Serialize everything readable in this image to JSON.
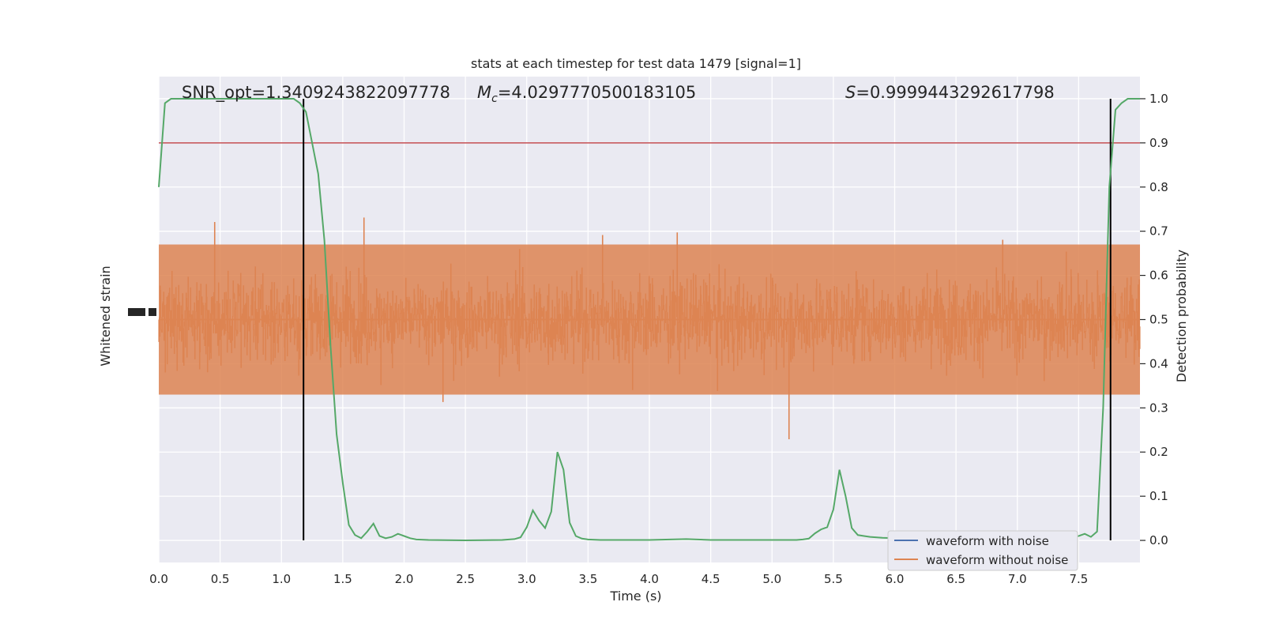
{
  "chart_data": {
    "type": "line",
    "title": "stats at each timestep for test data 1479 [signal=1]",
    "xlabel": "Time (s)",
    "ylabel_left": "Whitened strain",
    "ylabel_right": "Detection probability",
    "xlim": [
      0.0,
      8.0
    ],
    "ylim_right": [
      -0.05,
      1.05
    ],
    "x_ticks": [
      "0.0",
      "0.5",
      "1.0",
      "1.5",
      "2.0",
      "2.5",
      "3.0",
      "3.5",
      "4.0",
      "4.5",
      "5.0",
      "5.5",
      "6.0",
      "6.5",
      "7.0",
      "7.5"
    ],
    "x_tick_values": [
      0.0,
      0.5,
      1.0,
      1.5,
      2.0,
      2.5,
      3.0,
      3.5,
      4.0,
      4.5,
      5.0,
      5.5,
      6.0,
      6.5,
      7.0,
      7.5
    ],
    "y_right_ticks": [
      "0.0",
      "0.1",
      "0.2",
      "0.3",
      "0.4",
      "0.5",
      "0.6",
      "0.7",
      "0.8",
      "0.9",
      "1.0"
    ],
    "y_right_tick_values": [
      0.0,
      0.1,
      0.2,
      0.3,
      0.4,
      0.5,
      0.6,
      0.7,
      0.8,
      0.9,
      1.0
    ],
    "annotations": {
      "snr": "SNR_opt=1.3409243822097778",
      "mc_symbol": "M",
      "mc_sub": "c",
      "mc_value": "=4.0297770500183105",
      "s_symbol": "S",
      "s_value": "=0.9999443292617798"
    },
    "threshold": 0.9,
    "vertical_lines": [
      1.18,
      7.76
    ],
    "grid": true,
    "legend": {
      "placement": "lower-right",
      "entries": [
        "waveform with noise",
        "waveform without noise"
      ]
    },
    "colors": {
      "background": "#eaeaf2",
      "noise": "#dd8452",
      "clean": "#4c72b0",
      "probability": "#55a868",
      "threshold": "#c44e52",
      "vline": "#000000"
    },
    "series": [
      {
        "name": "Detection probability",
        "x": [
          0.0,
          0.05,
          0.1,
          0.15,
          0.2,
          0.3,
          0.5,
          0.7,
          0.9,
          1.1,
          1.15,
          1.2,
          1.25,
          1.3,
          1.35,
          1.4,
          1.45,
          1.5,
          1.55,
          1.6,
          1.65,
          1.7,
          1.75,
          1.8,
          1.85,
          1.9,
          1.95,
          2.0,
          2.05,
          2.1,
          2.2,
          2.5,
          2.8,
          2.9,
          2.95,
          3.0,
          3.05,
          3.1,
          3.15,
          3.2,
          3.25,
          3.3,
          3.35,
          3.4,
          3.45,
          3.5,
          3.6,
          3.8,
          4.0,
          4.3,
          4.5,
          4.8,
          5.0,
          5.2,
          5.25,
          5.3,
          5.35,
          5.4,
          5.45,
          5.5,
          5.55,
          5.6,
          5.65,
          5.7,
          5.75,
          5.8,
          5.9,
          6.0,
          6.5,
          7.0,
          7.3,
          7.5,
          7.55,
          7.6,
          7.65,
          7.7,
          7.75,
          7.8,
          7.85,
          7.9,
          7.95,
          8.0
        ],
        "values": [
          0.8,
          0.99,
          1.0,
          1.0,
          1.0,
          1.0,
          1.0,
          1.0,
          1.0,
          1.0,
          0.99,
          0.97,
          0.9,
          0.83,
          0.68,
          0.44,
          0.24,
          0.13,
          0.035,
          0.012,
          0.005,
          0.02,
          0.038,
          0.01,
          0.005,
          0.008,
          0.015,
          0.01,
          0.005,
          0.002,
          0.001,
          0.0,
          0.001,
          0.003,
          0.007,
          0.03,
          0.068,
          0.045,
          0.028,
          0.065,
          0.2,
          0.16,
          0.04,
          0.01,
          0.004,
          0.002,
          0.001,
          0.001,
          0.001,
          0.003,
          0.001,
          0.001,
          0.001,
          0.001,
          0.002,
          0.004,
          0.016,
          0.025,
          0.03,
          0.07,
          0.16,
          0.1,
          0.028,
          0.012,
          0.01,
          0.008,
          0.006,
          0.005,
          0.005,
          0.005,
          0.006,
          0.01,
          0.015,
          0.008,
          0.02,
          0.3,
          0.8,
          0.975,
          0.99,
          1.0,
          1.0,
          1.0
        ]
      }
    ]
  }
}
